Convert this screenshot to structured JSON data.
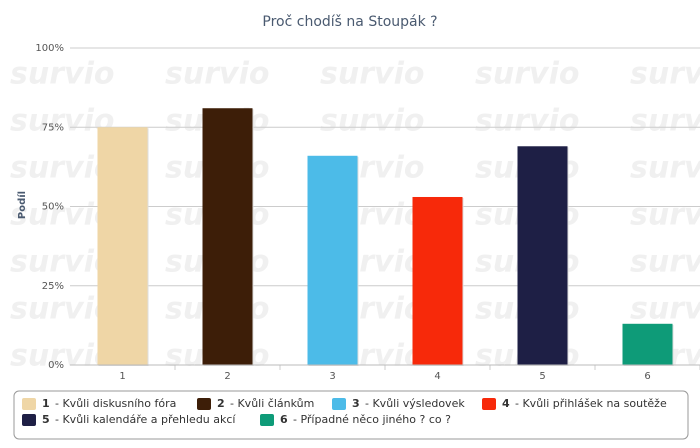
{
  "chart_data": {
    "type": "bar",
    "title": "Proč chodíš na Stoupák ?",
    "ylabel": "Podíl",
    "categories": [
      "1",
      "2",
      "3",
      "4",
      "5",
      "6"
    ],
    "values": [
      75,
      81,
      66,
      53,
      69,
      13
    ],
    "colors": [
      "#efd6a6",
      "#3d1e08",
      "#4cbbe8",
      "#f7290a",
      "#1e1f45",
      "#0e9b78"
    ],
    "ylim": [
      0,
      100
    ],
    "yticks": [
      {
        "value": 0,
        "label": "0%"
      },
      {
        "value": 25,
        "label": "25%"
      },
      {
        "value": 50,
        "label": "50%"
      },
      {
        "value": 75,
        "label": "75%"
      },
      {
        "value": 100,
        "label": "100%"
      }
    ],
    "grid": true,
    "watermark": "survio",
    "legend": [
      {
        "number": "1",
        "label": "- Kvůli diskusního fóra"
      },
      {
        "number": "2",
        "label": "- Kvůli článkům"
      },
      {
        "number": "3",
        "label": "- Kvůli výsledovek"
      },
      {
        "number": "4",
        "label": "- Kvůli přihlášek na soutěže"
      },
      {
        "number": "5",
        "label": "- Kvůli kalendáře a přehledu akcí"
      },
      {
        "number": "6",
        "label": "- Případné něco jiného ? co ?"
      }
    ]
  }
}
